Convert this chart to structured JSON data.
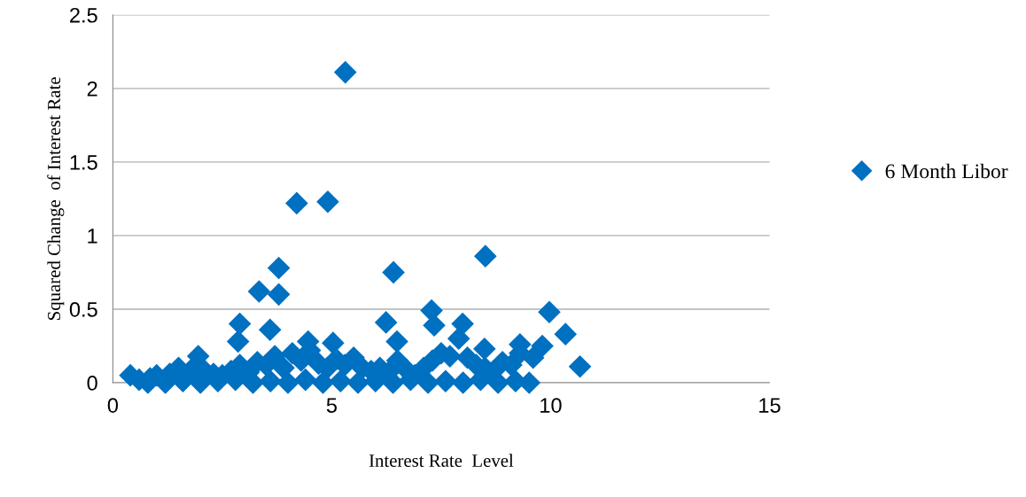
{
  "chart_data": {
    "type": "scatter",
    "xlabel": "Interest Rate  Level",
    "ylabel": "Squared Change  of Interest Rate",
    "xlim": [
      0,
      15
    ],
    "ylim": [
      0,
      2.5
    ],
    "xticks": [
      0,
      5,
      10,
      15
    ],
    "yticks": [
      0,
      0.5,
      1,
      1.5,
      2,
      2.5
    ],
    "grid": "y",
    "legend": "right",
    "marker": "diamond",
    "series": [
      {
        "name": "6 Month Libor",
        "color": "#0070c0",
        "x": [
          5.31,
          4.2,
          4.91,
          8.51,
          6.41,
          3.79,
          3.34,
          3.79,
          3.59,
          2.9,
          2.86,
          7.28,
          7.34,
          9.97,
          10.34,
          10.67,
          7.99,
          9.81,
          9.51,
          9.3,
          8.49,
          6.24,
          6.49,
          4.46,
          1.95,
          5.03,
          0.4,
          0.6,
          0.85,
          1.0,
          1.3,
          1.5,
          1.7,
          1.9,
          2.1,
          2.3,
          2.5,
          2.7,
          2.9,
          3.1,
          3.3,
          3.5,
          3.7,
          3.9,
          4.1,
          4.3,
          4.5,
          4.7,
          4.9,
          5.1,
          5.3,
          5.5,
          5.7,
          5.9,
          6.1,
          6.3,
          6.5,
          6.7,
          6.9,
          7.1,
          7.3,
          7.5,
          7.7,
          7.9,
          8.1,
          8.3,
          8.5,
          8.7,
          8.9,
          9.1,
          9.3,
          0.8,
          1.2,
          1.6,
          2.0,
          2.4,
          2.8,
          3.2,
          3.6,
          4.0,
          4.4,
          4.8,
          5.2,
          5.6,
          6.0,
          6.4,
          6.8,
          7.2,
          7.6,
          8.0,
          8.4,
          8.8,
          9.2,
          9.6
        ],
        "values": [
          2.11,
          1.22,
          1.23,
          0.86,
          0.75,
          0.78,
          0.62,
          0.6,
          0.36,
          0.4,
          0.28,
          0.49,
          0.39,
          0.48,
          0.33,
          0.11,
          0.4,
          0.25,
          0.0,
          0.26,
          0.23,
          0.41,
          0.28,
          0.28,
          0.18,
          0.27,
          0.05,
          0.02,
          0.03,
          0.05,
          0.06,
          0.1,
          0.05,
          0.12,
          0.08,
          0.06,
          0.05,
          0.08,
          0.12,
          0.07,
          0.14,
          0.12,
          0.18,
          0.1,
          0.2,
          0.15,
          0.22,
          0.13,
          0.1,
          0.16,
          0.12,
          0.17,
          0.1,
          0.08,
          0.1,
          0.07,
          0.15,
          0.09,
          0.05,
          0.1,
          0.15,
          0.2,
          0.18,
          0.3,
          0.17,
          0.12,
          0.1,
          0.08,
          0.14,
          0.12,
          0.2,
          0.0,
          0.0,
          0.01,
          0.0,
          0.01,
          0.02,
          0.0,
          0.01,
          0.0,
          0.02,
          0.0,
          0.01,
          0.0,
          0.01,
          0.0,
          0.02,
          0.0,
          0.01,
          0.0,
          0.02,
          0.0,
          0.01,
          0.17
        ]
      }
    ]
  }
}
